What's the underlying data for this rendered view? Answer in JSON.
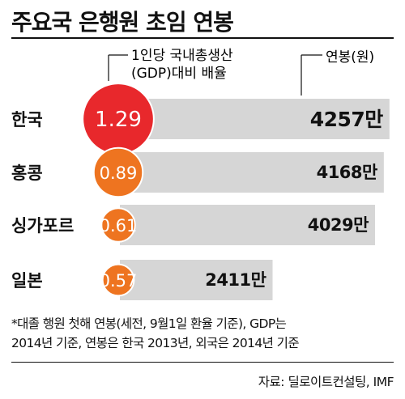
{
  "title": "주요국 은행원 초임 연봉",
  "chart_data": {
    "type": "bar",
    "categories": [
      "한국",
      "홍콩",
      "싱가포르",
      "일본"
    ],
    "series": [
      {
        "name": "연봉(원)",
        "values": [
          4257,
          4168,
          4029,
          2411
        ],
        "labels": [
          "4257만",
          "4168만",
          "4029만",
          "2411만"
        ]
      },
      {
        "name": "1인당 국내총생산 (GDP)대비 배율",
        "values": [
          1.29,
          0.89,
          0.61,
          0.57
        ],
        "labels": [
          "1.29",
          "0.89",
          "0.61",
          "0.57"
        ]
      }
    ],
    "legend": {
      "ratio_line1": "1인당 국내총생산",
      "ratio_line2": "(GDP)대비 배율",
      "salary": "연봉(원)"
    },
    "colors": {
      "bar": "#d6d6d6",
      "bubble": "#ee7420",
      "bubble_highlight": "#e8282c"
    }
  },
  "footnote": "*대졸 행원 첫해 연봉(세전, 9월1일 환율 기준), GDP는\n2014년 기준, 연봉은 한국 2013년, 외국은 2014년 기준",
  "source": "자료: 딜로이트컨설팅, IMF"
}
